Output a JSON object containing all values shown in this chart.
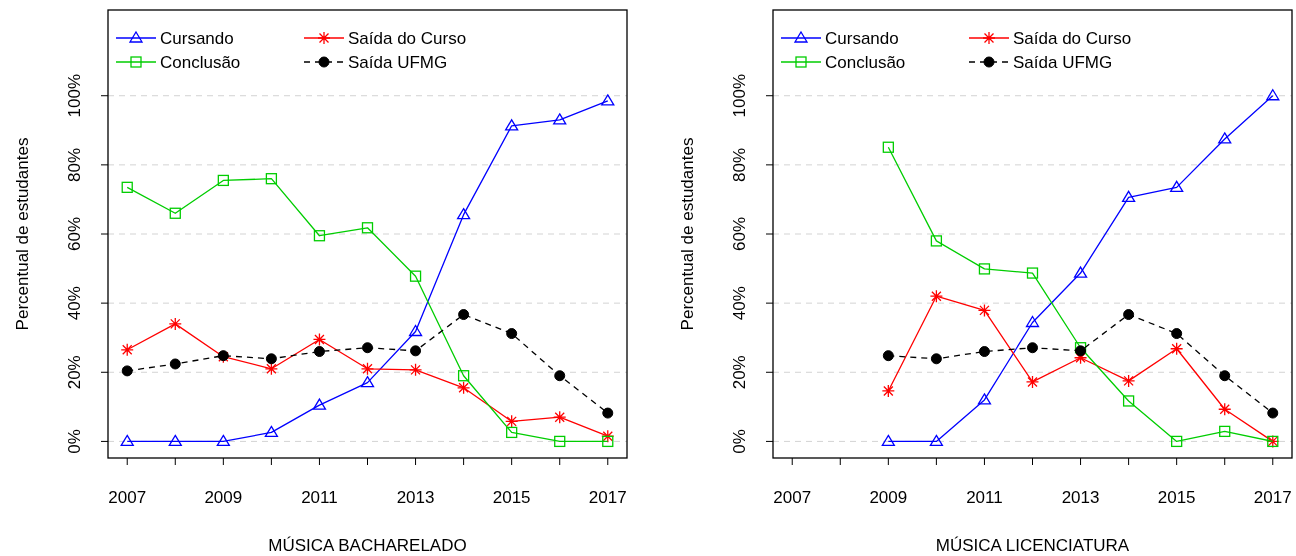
{
  "chart_data": [
    {
      "type": "line",
      "xlabel": "MÚSICA BACHARELADO",
      "ylabel": "Percentual de estudantes",
      "x": [
        2007,
        2008,
        2009,
        2010,
        2011,
        2012,
        2013,
        2014,
        2015,
        2016,
        2017
      ],
      "xlim": [
        2006.6,
        2017.4
      ],
      "xticks": [
        2007,
        {
          "value": 2008,
          "label": null
        },
        2009,
        {
          "value": 2010,
          "label": null
        },
        2011,
        {
          "value": 2012,
          "label": null
        },
        2013,
        {
          "value": 2014,
          "label": null
        },
        2015,
        {
          "value": 2016,
          "label": null
        },
        2017
      ],
      "ylim": [
        -4.8,
        124.8
      ],
      "yticks": [
        {
          "value": 0,
          "label": "0%"
        },
        {
          "value": 20,
          "label": "20%"
        },
        {
          "value": 40,
          "label": "40%"
        },
        {
          "value": 60,
          "label": "60%"
        },
        {
          "value": 80,
          "label": "80%"
        },
        {
          "value": 100,
          "label": "100%"
        }
      ],
      "grid": "y",
      "legend": "top",
      "series": [
        {
          "name": "Cursando",
          "color": "#0000ff",
          "marker": "triangle",
          "line_style": "solid",
          "values": [
            0,
            0,
            0,
            2.6,
            10.5,
            17,
            31.8,
            65.6,
            91.3,
            93,
            98.5
          ]
        },
        {
          "name": "Saída do Curso",
          "color": "#ff0000",
          "marker": "cross",
          "line_style": "solid",
          "values": [
            26.5,
            34,
            24.5,
            21,
            29.5,
            21,
            20.7,
            15.5,
            5.8,
            7,
            1.5
          ]
        },
        {
          "name": "Conclusão",
          "color": "#00cd00",
          "marker": "square",
          "line_style": "solid",
          "values": [
            73.5,
            66,
            75.5,
            76,
            59.5,
            61.8,
            47.8,
            19,
            2.6,
            0,
            0
          ]
        },
        {
          "name": "Saída UFMG",
          "color": "#000000",
          "marker": "circle",
          "line_style": "dashed",
          "values": [
            20.4,
            22.4,
            24.8,
            23.9,
            26,
            27.1,
            26.2,
            36.7,
            31.2,
            19,
            8.2
          ]
        }
      ]
    },
    {
      "type": "line",
      "xlabel": "MÚSICA LICENCIATURA",
      "ylabel": "Percentual de estudantes",
      "x": [
        2009,
        2010,
        2011,
        2012,
        2013,
        2014,
        2015,
        2016,
        2017
      ],
      "xlim": [
        2006.6,
        2017.4
      ],
      "xticks": [
        2007,
        {
          "value": 2008,
          "label": null
        },
        2009,
        {
          "value": 2010,
          "label": null
        },
        2011,
        {
          "value": 2012,
          "label": null
        },
        2013,
        {
          "value": 2014,
          "label": null
        },
        2015,
        {
          "value": 2016,
          "label": null
        },
        2017
      ],
      "ylim": [
        -4.8,
        124.8
      ],
      "yticks": [
        {
          "value": 0,
          "label": "0%"
        },
        {
          "value": 20,
          "label": "20%"
        },
        {
          "value": 40,
          "label": "40%"
        },
        {
          "value": 60,
          "label": "60%"
        },
        {
          "value": 80,
          "label": "80%"
        },
        {
          "value": 100,
          "label": "100%"
        }
      ],
      "grid": "y",
      "legend": "top",
      "series": [
        {
          "name": "Cursando",
          "color": "#0000ff",
          "marker": "triangle",
          "line_style": "solid",
          "values": [
            0,
            0,
            12,
            34.4,
            48.7,
            70.6,
            73.5,
            87.5,
            100
          ]
        },
        {
          "name": "Saída do Curso",
          "color": "#ff0000",
          "marker": "cross",
          "line_style": "solid",
          "values": [
            14.6,
            42,
            37.9,
            17.2,
            24.2,
            17.5,
            26.8,
            9.3,
            0
          ]
        },
        {
          "name": "Conclusão",
          "color": "#00cd00",
          "marker": "square",
          "line_style": "solid",
          "values": [
            85.1,
            58,
            49.9,
            48.7,
            27.1,
            11.7,
            0,
            2.9,
            0
          ]
        },
        {
          "name": "Saída UFMG",
          "color": "#000000",
          "marker": "circle",
          "line_style": "dashed",
          "values": [
            24.8,
            23.9,
            26,
            27.1,
            26.2,
            36.7,
            31.2,
            19,
            8.2
          ]
        }
      ]
    }
  ]
}
